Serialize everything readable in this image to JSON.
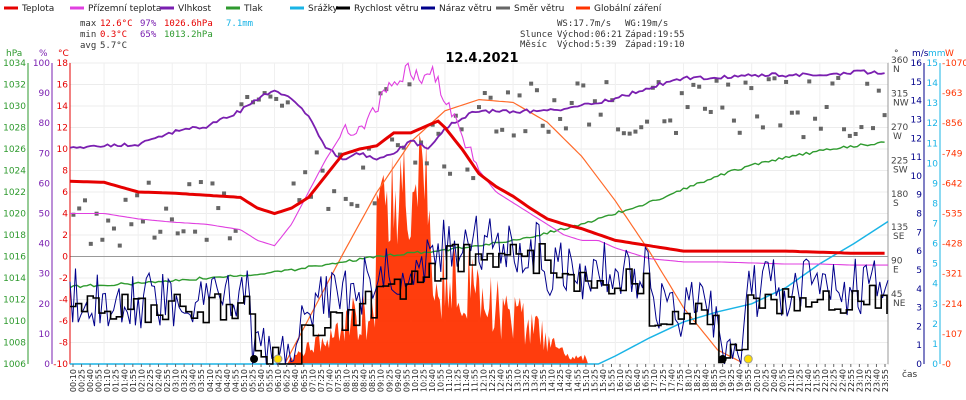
{
  "chart_data": {
    "type": "line",
    "title": "12.4.2021",
    "legend": [
      {
        "label": "Teplota",
        "color": "#e60000"
      },
      {
        "label": "Přízemní teplota",
        "color": "#e040e0"
      },
      {
        "label": "Vlhkost",
        "color": "#7a1fb0"
      },
      {
        "label": "Tlak",
        "color": "#2e9a2e"
      },
      {
        "label": "Srážky",
        "color": "#1ab4e6"
      },
      {
        "label": "Rychlost větru",
        "color": "#000000"
      },
      {
        "label": "Náraz větru",
        "color": "#00008b"
      },
      {
        "label": "Směr větru",
        "color": "#666666"
      },
      {
        "label": "Globální záření",
        "color": "#ff3300"
      }
    ],
    "stats": {
      "max": {
        "label": "max",
        "temp": "12.6°C",
        "hum": "97%",
        "press": "1026.6hPa",
        "rain": "7.1mm"
      },
      "min": {
        "label": "min",
        "temp": "0.3°C",
        "hum": "65%",
        "press": "1013.2hPa"
      },
      "avg": {
        "label": "avg",
        "temp": "5.7°C"
      }
    },
    "info": {
      "ws": "WS:17.7m/s",
      "wg": "WG:19m/s",
      "sun": "Slunce",
      "moon": "Měsíc",
      "sunrise": "Východ:06:21",
      "sunset": "Západ:19:55",
      "moonrise": "Východ:5:39",
      "moonset": "Západ:19:10"
    },
    "axis_units": {
      "hpa": "hPa",
      "pct": "%",
      "degc": "°C",
      "deg": "°",
      "ms": "m/s",
      "mm": "mm",
      "wm2": "W",
      "time": "čas"
    },
    "hpa_ticks": [
      "1034",
      "1032",
      "1030",
      "1028",
      "1026",
      "1024",
      "1022",
      "1020",
      "1018",
      "1016",
      "1014",
      "1012",
      "1010",
      "1008",
      "1006"
    ],
    "pct_ticks": [
      "100",
      "90",
      "80",
      "70",
      "60",
      "50",
      "40",
      "30",
      "20",
      "10",
      "0"
    ],
    "temp_ticks": [
      "18",
      "16",
      "14",
      "12",
      "10",
      "8",
      "6",
      "4",
      "2",
      "0",
      "-2",
      "-4",
      "-6",
      "-8",
      "-10"
    ],
    "dir_ticks": [
      {
        "deg": "360",
        "dir": "N"
      },
      {
        "deg": "315",
        "dir": "NW"
      },
      {
        "deg": "270",
        "dir": "W"
      },
      {
        "deg": "225",
        "dir": "SW"
      },
      {
        "deg": "180",
        "dir": "S"
      },
      {
        "deg": "135",
        "dir": "SE"
      },
      {
        "deg": "90",
        "dir": "E"
      },
      {
        "deg": "45",
        "dir": "NE"
      }
    ],
    "ms_ticks": [
      "16",
      "15",
      "14",
      "13",
      "12",
      "11",
      "10",
      "9",
      "8",
      "7",
      "6",
      "5",
      "4",
      "3",
      "2",
      "1",
      "0"
    ],
    "mm_ticks": [
      "15",
      "14",
      "13",
      "12",
      "11",
      "10",
      "9",
      "8",
      "7",
      "6",
      "5",
      "4",
      "3",
      "2",
      "1",
      "0"
    ],
    "wm2_ticks": [
      "1070",
      "963",
      "856",
      "749",
      "642",
      "535",
      "428",
      "321",
      "214",
      "107",
      "0"
    ],
    "time_labels": [
      "00:10",
      "00:25",
      "00:40",
      "00:55",
      "01:10",
      "01:25",
      "01:40",
      "01:55",
      "02:10",
      "02:25",
      "02:40",
      "02:55",
      "03:10",
      "03:25",
      "03:40",
      "03:55",
      "04:10",
      "04:25",
      "04:40",
      "04:55",
      "05:10",
      "05:25",
      "05:40",
      "05:55",
      "06:10",
      "06:25",
      "06:40",
      "06:55",
      "07:10",
      "07:25",
      "07:40",
      "07:55",
      "08:10",
      "08:25",
      "08:40",
      "08:55",
      "09:10",
      "09:25",
      "09:40",
      "09:55",
      "10:10",
      "10:25",
      "10:40",
      "10:55",
      "11:10",
      "11:25",
      "11:40",
      "11:55",
      "12:10",
      "12:25",
      "12:40",
      "12:55",
      "13:10",
      "13:25",
      "13:40",
      "13:55",
      "14:10",
      "14:25",
      "14:40",
      "14:55",
      "15:10",
      "15:25",
      "15:40",
      "15:55",
      "16:10",
      "16:25",
      "16:40",
      "16:55",
      "17:10",
      "17:25",
      "17:40",
      "17:55",
      "18:10",
      "18:25",
      "18:40",
      "18:55",
      "19:10",
      "19:25",
      "19:40",
      "19:55",
      "20:10",
      "20:25",
      "20:40",
      "20:55",
      "21:10",
      "21:25",
      "21:40",
      "21:55",
      "22:10",
      "22:25",
      "22:40",
      "22:55",
      "23:10",
      "23:25",
      "23:40",
      "23:55"
    ],
    "x_range_hours": [
      0,
      24
    ],
    "series": [
      {
        "name": "Teplota",
        "unit": "°C",
        "x": [
          0,
          1,
          2,
          3,
          4,
          5,
          5.5,
          6,
          6.5,
          7,
          7.5,
          8,
          8.5,
          9,
          9.5,
          10,
          10.5,
          10.8,
          11,
          11.5,
          12,
          12.5,
          13,
          13.5,
          14,
          14.5,
          15,
          16,
          17,
          18,
          19,
          20,
          21,
          22,
          23,
          24
        ],
        "y": [
          7.0,
          6.9,
          6.0,
          5.9,
          5.7,
          5.5,
          4.5,
          4.0,
          4.5,
          5.5,
          7.5,
          9.5,
          10.0,
          10.3,
          11.5,
          11.5,
          12.2,
          12.6,
          12.0,
          10.0,
          7.7,
          6.5,
          5.6,
          4.5,
          3.5,
          3.0,
          2.6,
          1.5,
          1.0,
          0.5,
          0.5,
          0.5,
          0.5,
          0.4,
          0.3,
          0.3
        ]
      },
      {
        "name": "Přízemní teplota",
        "unit": "°C",
        "x": [
          0,
          1,
          2,
          3,
          4,
          5,
          5.5,
          6,
          6.5,
          7,
          7.5,
          8,
          8.5,
          9,
          9.5,
          10,
          10.3,
          10.6,
          11,
          11.5,
          12,
          12.5,
          13,
          13.5,
          14,
          14.5,
          15,
          15.5,
          16,
          17,
          18,
          19,
          20,
          21,
          22,
          23,
          24
        ],
        "y": [
          4.0,
          4.0,
          3.5,
          3.2,
          3.0,
          2.5,
          1.5,
          1.0,
          3.0,
          6.0,
          9.0,
          11.5,
          12.0,
          14.0,
          16.0,
          17.5,
          16.0,
          17.5,
          14.5,
          11.0,
          8.0,
          6.0,
          5.0,
          4.0,
          3.0,
          2.0,
          1.5,
          1.5,
          0.8,
          -0.2,
          -0.5,
          -0.5,
          -0.6,
          -0.7,
          -0.7,
          -0.8,
          -0.8
        ]
      },
      {
        "name": "Vlhkost",
        "unit": "%",
        "x": [
          0,
          2,
          3,
          4,
          5,
          5.5,
          6,
          6.5,
          7,
          7.5,
          8,
          8.5,
          9,
          9.5,
          10,
          10.5,
          11,
          11.5,
          12,
          13,
          14,
          15,
          16,
          17,
          18,
          19,
          20,
          21,
          22,
          23,
          24
        ],
        "y": [
          72,
          73,
          77,
          79,
          84,
          88,
          91,
          88,
          82,
          72,
          68,
          70,
          68,
          70,
          74,
          72,
          78,
          82,
          84,
          84,
          84,
          86,
          88,
          92,
          95,
          95,
          96,
          96,
          96,
          97,
          97
        ]
      },
      {
        "name": "Tlak",
        "unit": "hPa",
        "x": [
          0,
          2,
          4,
          6,
          7,
          8,
          9,
          10,
          11,
          12,
          13,
          14,
          15,
          16,
          17,
          18,
          19,
          20,
          21,
          22,
          23,
          24
        ],
        "y": [
          1013.2,
          1013.5,
          1014.0,
          1014.5,
          1015.0,
          1015.5,
          1016.0,
          1016.3,
          1016.6,
          1017.0,
          1017.5,
          1018.2,
          1019.0,
          1020.0,
          1021.0,
          1022.3,
          1023.5,
          1024.5,
          1025.2,
          1025.8,
          1026.3,
          1026.6
        ]
      },
      {
        "name": "Srážky",
        "unit": "mm",
        "x": [
          0,
          15.5,
          16,
          17,
          18,
          19,
          20,
          21,
          22,
          23,
          24
        ],
        "y": [
          0,
          0,
          0.4,
          1.3,
          2.1,
          2.6,
          3.0,
          3.8,
          5.0,
          6.0,
          7.1
        ]
      },
      {
        "name": "Globální záření",
        "unit": "W/m2",
        "x": [
          0,
          6.3,
          7,
          8,
          9,
          10,
          11,
          12,
          13,
          14,
          15,
          16,
          17,
          18,
          19,
          19.8,
          24
        ],
        "y": [
          0,
          0,
          160,
          390,
          610,
          790,
          900,
          940,
          930,
          860,
          740,
          580,
          400,
          200,
          50,
          0,
          0
        ]
      }
    ]
  }
}
